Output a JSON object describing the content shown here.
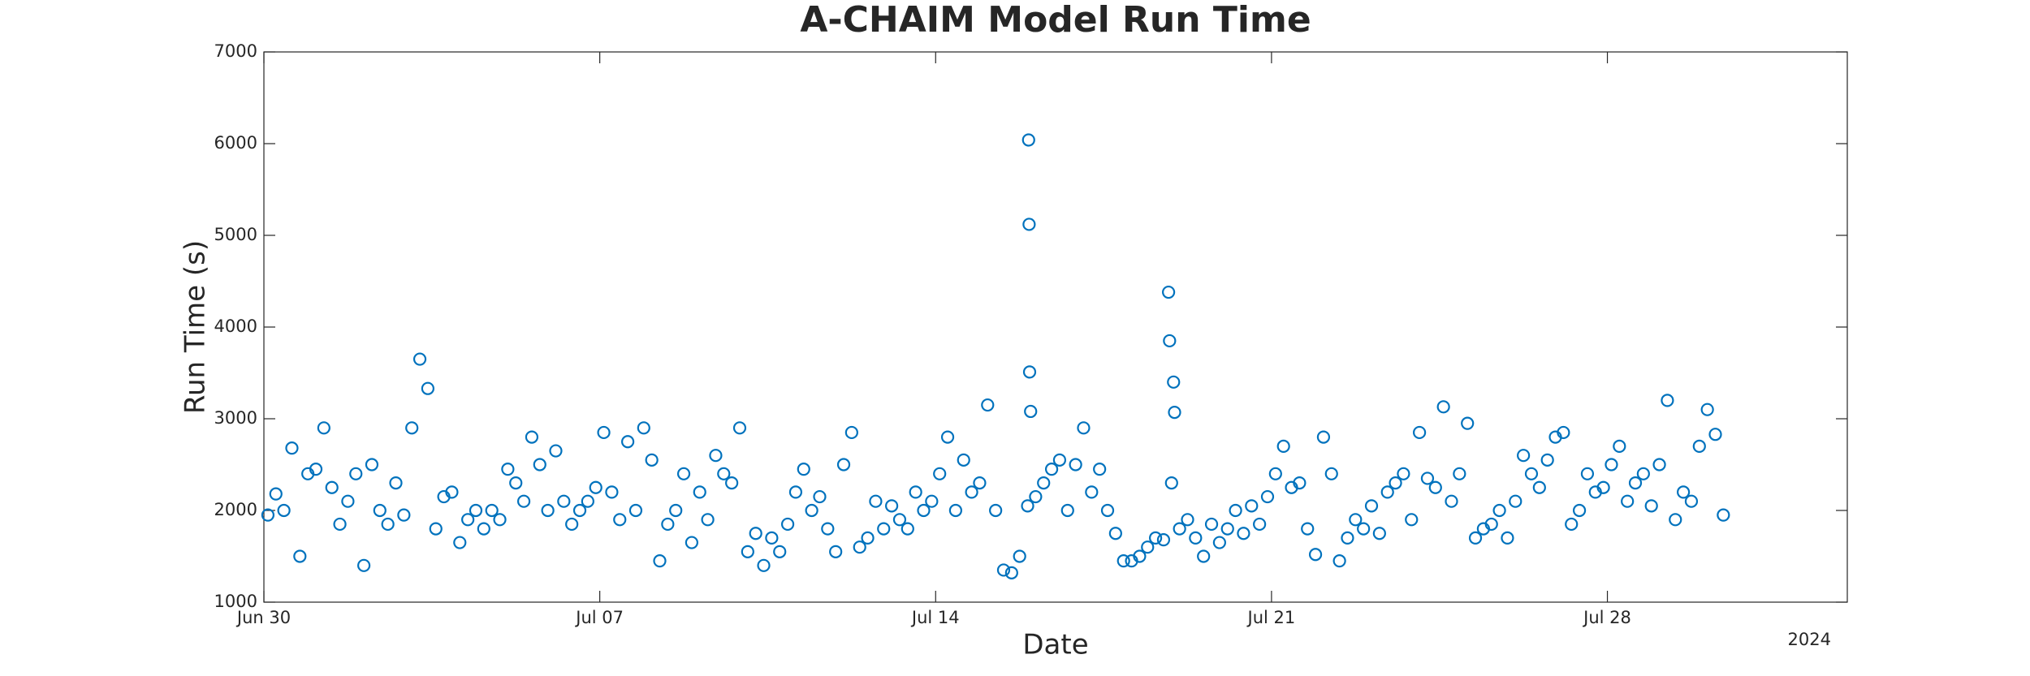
{
  "chart_data": {
    "type": "scatter",
    "title": "A-CHAIM Model Run Time",
    "xlabel": "Date",
    "ylabel": "Run Time (s)",
    "x_secondary_label": "2024",
    "xlim": [
      "2024-06-30T00:00",
      "2024-08-02T00:00"
    ],
    "xticks": [
      {
        "value": "2024-06-30T00:00",
        "label": "Jun 30"
      },
      {
        "value": "2024-07-07T00:00",
        "label": "Jul 07"
      },
      {
        "value": "2024-07-14T00:00",
        "label": "Jul 14"
      },
      {
        "value": "2024-07-21T00:00",
        "label": "Jul 21"
      },
      {
        "value": "2024-07-28T00:00",
        "label": "Jul 28"
      }
    ],
    "ylim": [
      1000,
      7000
    ],
    "yticks": [
      1000,
      2000,
      3000,
      4000,
      5000,
      6000,
      7000
    ],
    "color": "#0072bd",
    "x": [
      "2024-06-30T02:00",
      "2024-06-30T06:00",
      "2024-06-30T10:00",
      "2024-06-30T14:00",
      "2024-06-30T18:00",
      "2024-06-30T22:00",
      "2024-07-01T02:00",
      "2024-07-01T06:00",
      "2024-07-01T10:00",
      "2024-07-01T14:00",
      "2024-07-01T18:00",
      "2024-07-01T22:00",
      "2024-07-02T02:00",
      "2024-07-02T06:00",
      "2024-07-02T10:00",
      "2024-07-02T14:00",
      "2024-07-02T18:00",
      "2024-07-02T22:00",
      "2024-07-03T02:00",
      "2024-07-03T06:00",
      "2024-07-03T10:00",
      "2024-07-03T14:00",
      "2024-07-03T18:00",
      "2024-07-03T22:00",
      "2024-07-04T02:00",
      "2024-07-04T06:00",
      "2024-07-04T10:00",
      "2024-07-04T14:00",
      "2024-07-04T18:00",
      "2024-07-04T22:00",
      "2024-07-05T02:00",
      "2024-07-05T06:00",
      "2024-07-05T10:00",
      "2024-07-05T14:00",
      "2024-07-05T18:00",
      "2024-07-05T22:00",
      "2024-07-06T02:00",
      "2024-07-06T06:00",
      "2024-07-06T10:00",
      "2024-07-06T14:00",
      "2024-07-06T18:00",
      "2024-07-06T22:00",
      "2024-07-07T02:00",
      "2024-07-07T06:00",
      "2024-07-07T10:00",
      "2024-07-07T14:00",
      "2024-07-07T18:00",
      "2024-07-07T22:00",
      "2024-07-08T02:00",
      "2024-07-08T06:00",
      "2024-07-08T10:00",
      "2024-07-08T14:00",
      "2024-07-08T18:00",
      "2024-07-08T22:00",
      "2024-07-09T02:00",
      "2024-07-09T06:00",
      "2024-07-09T10:00",
      "2024-07-09T14:00",
      "2024-07-09T18:00",
      "2024-07-09T22:00",
      "2024-07-10T02:00",
      "2024-07-10T06:00",
      "2024-07-10T10:00",
      "2024-07-10T14:00",
      "2024-07-10T18:00",
      "2024-07-10T22:00",
      "2024-07-11T02:00",
      "2024-07-11T06:00",
      "2024-07-11T10:00",
      "2024-07-11T14:00",
      "2024-07-11T18:00",
      "2024-07-11T22:00",
      "2024-07-12T02:00",
      "2024-07-12T06:00",
      "2024-07-12T10:00",
      "2024-07-12T14:00",
      "2024-07-12T18:00",
      "2024-07-12T22:00",
      "2024-07-13T02:00",
      "2024-07-13T06:00",
      "2024-07-13T10:00",
      "2024-07-13T14:00",
      "2024-07-13T18:00",
      "2024-07-13T22:00",
      "2024-07-14T02:00",
      "2024-07-14T06:00",
      "2024-07-14T10:00",
      "2024-07-14T14:00",
      "2024-07-14T18:00",
      "2024-07-14T22:00",
      "2024-07-15T02:00",
      "2024-07-15T06:00",
      "2024-07-15T10:00",
      "2024-07-15T14:00",
      "2024-07-15T18:00",
      "2024-07-15T22:00",
      "2024-07-15T22:30",
      "2024-07-15T22:45",
      "2024-07-15T23:00",
      "2024-07-15T23:30",
      "2024-07-16T02:00",
      "2024-07-16T06:00",
      "2024-07-16T10:00",
      "2024-07-16T14:00",
      "2024-07-16T18:00",
      "2024-07-16T22:00",
      "2024-07-17T02:00",
      "2024-07-17T06:00",
      "2024-07-17T10:00",
      "2024-07-17T14:00",
      "2024-07-17T18:00",
      "2024-07-17T22:00",
      "2024-07-18T02:00",
      "2024-07-18T06:00",
      "2024-07-18T10:00",
      "2024-07-18T14:00",
      "2024-07-18T18:00",
      "2024-07-18T20:30",
      "2024-07-18T21:00",
      "2024-07-18T22:00",
      "2024-07-18T23:00",
      "2024-07-18T23:30",
      "2024-07-19T02:00",
      "2024-07-19T06:00",
      "2024-07-19T10:00",
      "2024-07-19T14:00",
      "2024-07-19T18:00",
      "2024-07-19T22:00",
      "2024-07-20T02:00",
      "2024-07-20T06:00",
      "2024-07-20T10:00",
      "2024-07-20T14:00",
      "2024-07-20T18:00",
      "2024-07-20T22:00",
      "2024-07-21T02:00",
      "2024-07-21T06:00",
      "2024-07-21T10:00",
      "2024-07-21T14:00",
      "2024-07-21T18:00",
      "2024-07-21T22:00",
      "2024-07-22T02:00",
      "2024-07-22T06:00",
      "2024-07-22T10:00",
      "2024-07-22T14:00",
      "2024-07-22T18:00",
      "2024-07-22T22:00",
      "2024-07-23T02:00",
      "2024-07-23T06:00",
      "2024-07-23T10:00",
      "2024-07-23T14:00",
      "2024-07-23T18:00",
      "2024-07-23T22:00",
      "2024-07-24T02:00",
      "2024-07-24T06:00",
      "2024-07-24T10:00",
      "2024-07-24T14:00",
      "2024-07-24T18:00",
      "2024-07-24T22:00",
      "2024-07-25T02:00",
      "2024-07-25T06:00",
      "2024-07-25T10:00",
      "2024-07-25T14:00",
      "2024-07-25T18:00",
      "2024-07-25T22:00",
      "2024-07-26T02:00",
      "2024-07-26T06:00",
      "2024-07-26T10:00",
      "2024-07-26T14:00",
      "2024-07-26T18:00",
      "2024-07-26T22:00",
      "2024-07-27T02:00",
      "2024-07-27T06:00",
      "2024-07-27T10:00",
      "2024-07-27T14:00",
      "2024-07-27T18:00",
      "2024-07-27T22:00",
      "2024-07-28T02:00",
      "2024-07-28T06:00",
      "2024-07-28T10:00",
      "2024-07-28T14:00",
      "2024-07-28T18:00",
      "2024-07-28T22:00",
      "2024-07-29T02:00",
      "2024-07-29T06:00",
      "2024-07-29T10:00",
      "2024-07-29T14:00",
      "2024-07-29T18:00",
      "2024-07-29T22:00",
      "2024-07-30T02:00",
      "2024-07-30T06:00",
      "2024-07-30T10:00"
    ],
    "values": [
      1950,
      2180,
      2000,
      2680,
      1500,
      2400,
      2450,
      2900,
      2250,
      1850,
      2100,
      2400,
      1400,
      2500,
      2000,
      1850,
      2300,
      1950,
      2900,
      3650,
      3330,
      1800,
      2150,
      2200,
      1650,
      1900,
      2000,
      1800,
      2000,
      1900,
      2450,
      2300,
      2100,
      2800,
      2500,
      2000,
      2650,
      2100,
      1850,
      2000,
      2100,
      2250,
      2850,
      2200,
      1900,
      2750,
      2000,
      2900,
      2550,
      1450,
      1850,
      2000,
      2400,
      1650,
      2200,
      1900,
      2600,
      2400,
      2300,
      2900,
      1550,
      1750,
      1400,
      1700,
      1550,
      1850,
      2200,
      2450,
      2000,
      2150,
      1800,
      1550,
      2500,
      2850,
      1600,
      1700,
      2100,
      1800,
      2050,
      1900,
      1800,
      2200,
      2000,
      2100,
      2400,
      2800,
      2000,
      2550,
      2200,
      2300,
      3150,
      2000,
      1350,
      1320,
      1500,
      2050,
      6040,
      5120,
      3510,
      3080,
      2150,
      2300,
      2450,
      2550,
      2000,
      2500,
      2900,
      2200,
      2450,
      2000,
      1750,
      1450,
      1450,
      1500,
      1600,
      1700,
      1680,
      4380,
      3850,
      2300,
      3400,
      3070,
      1800,
      1900,
      1700,
      1500,
      1850,
      1650,
      1800,
      2000,
      1750,
      2050,
      1850,
      2150,
      2400,
      2700,
      2250,
      2300,
      1800,
      1520,
      2800,
      2400,
      1450,
      1700,
      1900,
      1800,
      2050,
      1750,
      2200,
      2300,
      2400,
      1900,
      2850,
      2350,
      2250,
      3130,
      2100,
      2400,
      2950,
      1700,
      1800,
      1850,
      2000,
      1700,
      2100,
      2600,
      2400,
      2250,
      2550,
      2800,
      2850,
      1850,
      2000,
      2400,
      2200,
      2250,
      2500,
      2700,
      2100,
      2300,
      2400,
      2050,
      2500,
      3200,
      1900,
      2200,
      2100,
      2700,
      3100,
      2830,
      1950
    ]
  }
}
